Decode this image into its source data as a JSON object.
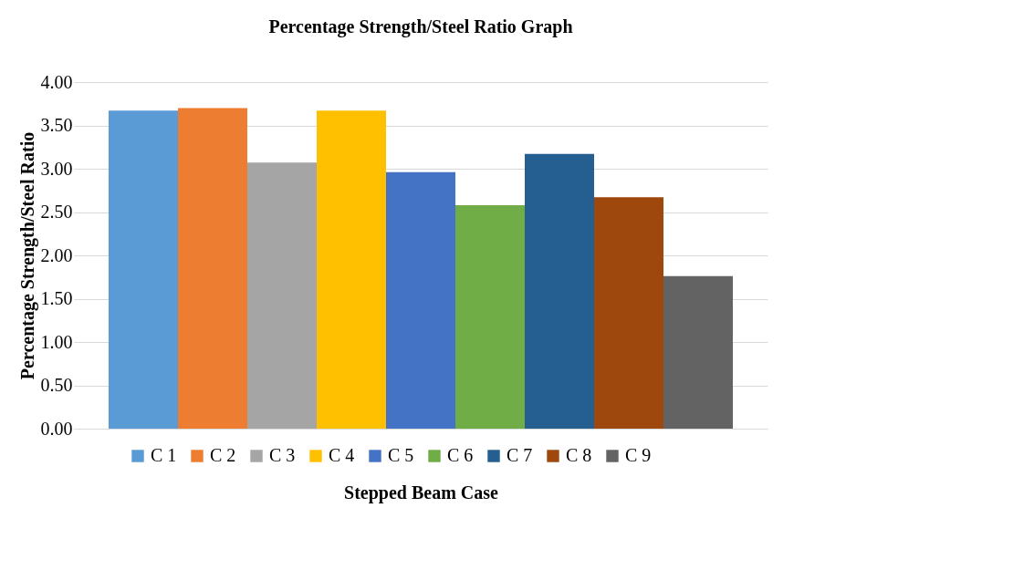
{
  "chart_data": {
    "type": "bar",
    "title": "Percentage Strength/Steel Ratio Graph",
    "xlabel": "Stepped Beam Case",
    "ylabel": "Percentage Strength/Steel Ratio",
    "categories": [
      null
    ],
    "series": [
      {
        "name": "C 1",
        "color": "#5b9bd5",
        "values": [
          3.67
        ]
      },
      {
        "name": "C 2",
        "color": "#ed7d31",
        "values": [
          3.7
        ]
      },
      {
        "name": "C 3",
        "color": "#a5a5a5",
        "values": [
          3.07
        ]
      },
      {
        "name": "C 4",
        "color": "#ffc000",
        "values": [
          3.67
        ]
      },
      {
        "name": "C 5",
        "color": "#4472c4",
        "values": [
          2.96
        ]
      },
      {
        "name": "C 6",
        "color": "#70ad47",
        "values": [
          2.58
        ]
      },
      {
        "name": "C 7",
        "color": "#255e91",
        "values": [
          3.17
        ]
      },
      {
        "name": "C 8",
        "color": "#9e480e",
        "values": [
          2.67
        ]
      },
      {
        "name": "C 9",
        "color": "#636363",
        "values": [
          1.76
        ]
      }
    ],
    "ylim": [
      0,
      4
    ],
    "yticks": [
      {
        "value": 0,
        "label": "0.00"
      },
      {
        "value": 0.5,
        "label": "0.50"
      },
      {
        "value": 1,
        "label": "1.00"
      },
      {
        "value": 1.5,
        "label": "1.50"
      },
      {
        "value": 2,
        "label": "2.00"
      },
      {
        "value": 2.5,
        "label": "2.50"
      },
      {
        "value": 3,
        "label": "3.00"
      },
      {
        "value": 3.5,
        "label": "3.50"
      },
      {
        "value": 4,
        "label": "4.00"
      }
    ],
    "grid": "y",
    "legend": "bottom",
    "tick_labels": "y"
  }
}
